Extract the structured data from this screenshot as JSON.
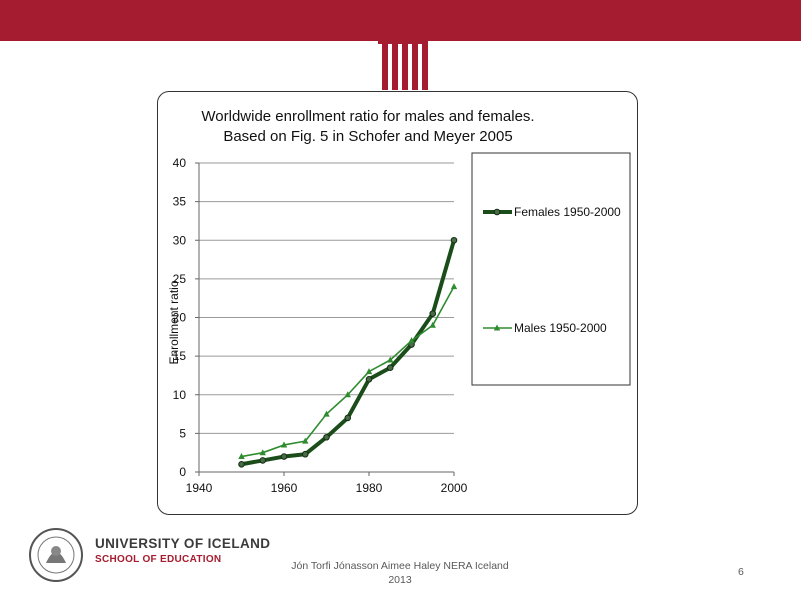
{
  "slide": {
    "university_name": "UNIVERSITY OF ICELAND",
    "school_name": "SCHOOL OF EDUCATION",
    "footer_line1": "Jón Torfi Jónasson Aimee Haley NERA Iceland",
    "footer_line2": "2013",
    "slide_number": "6",
    "colors": {
      "accent": "#a51c30"
    }
  },
  "chart_data": {
    "type": "line",
    "title_line1": "Worldwide enrollment ratio for males and females.",
    "title_line2": "Based on Fig. 5 in Schofer and Meyer 2005",
    "xlabel": "",
    "ylabel": "Enrollment ratio",
    "xlim": [
      1940,
      2000
    ],
    "ylim": [
      0,
      40
    ],
    "xticks": [
      1940,
      1960,
      1980,
      2000
    ],
    "yticks": [
      0,
      5,
      10,
      15,
      20,
      25,
      30,
      35,
      40
    ],
    "grid": "horizontal",
    "legend_placement": "right",
    "series": [
      {
        "name": "Females 1950-2000",
        "color": "#1b4d1b",
        "marker": "circle",
        "x": [
          1950,
          1955,
          1960,
          1965,
          1970,
          1975,
          1980,
          1985,
          1990,
          1995,
          2000
        ],
        "y": [
          1.0,
          1.5,
          2.0,
          2.3,
          4.5,
          7.0,
          12.0,
          13.5,
          16.5,
          20.5,
          30.0
        ]
      },
      {
        "name": "Males 1950-2000",
        "color": "#2e8b2e",
        "marker": "triangle",
        "x": [
          1950,
          1955,
          1960,
          1965,
          1970,
          1975,
          1980,
          1985,
          1990,
          1995,
          2000
        ],
        "y": [
          2.0,
          2.5,
          3.5,
          4.0,
          7.5,
          10.0,
          13.0,
          14.5,
          17.0,
          19.0,
          24.0
        ]
      }
    ]
  }
}
